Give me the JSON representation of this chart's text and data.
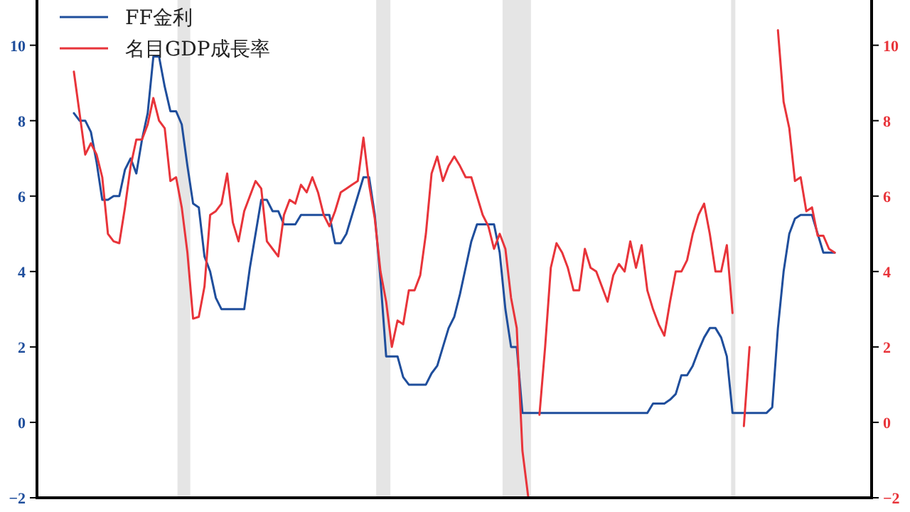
{
  "chart_data": {
    "type": "line",
    "categories": [
      null,
      null,
      null,
      null,
      null,
      null,
      null,
      null,
      null,
      null,
      null,
      null,
      null,
      null,
      null,
      null,
      null,
      null,
      null,
      null,
      null,
      null,
      null,
      null,
      null,
      null,
      null,
      null,
      null,
      null,
      null,
      null,
      null,
      null,
      null,
      null,
      null,
      null,
      null,
      null,
      null,
      null,
      null,
      null,
      null,
      null,
      null,
      null,
      null,
      null,
      null,
      null,
      null,
      null,
      null,
      null,
      null,
      null,
      null,
      null,
      null,
      null,
      null,
      null,
      null,
      null,
      null,
      null,
      null,
      null,
      null,
      null,
      null,
      null,
      null,
      null,
      null,
      null,
      null,
      null,
      null,
      null,
      null,
      null,
      null,
      null,
      null,
      null,
      null,
      null,
      null,
      null,
      null,
      null,
      null,
      null,
      null,
      null,
      null,
      null,
      null,
      null,
      null,
      null,
      null,
      null,
      null,
      null,
      null,
      null,
      null,
      null,
      null,
      null,
      null,
      null,
      null,
      null,
      null,
      null,
      null,
      null,
      null,
      null,
      null,
      null,
      null,
      null,
      null,
      null,
      null,
      null,
      null,
      null,
      null,
      null,
      null,
      null,
      null,
      null,
      null,
      null,
      null,
      null,
      null,
      null,
      null
    ],
    "series": [
      {
        "name": "FF金利",
        "color": "#1f4e9c",
        "values": [
          null,
          null,
          null,
          null,
          null,
          null,
          8.2,
          8.0,
          8.0,
          7.7,
          6.9,
          5.9,
          5.9,
          6.0,
          6.0,
          6.7,
          7.0,
          6.6,
          7.5,
          8.2,
          9.7,
          9.7,
          8.9,
          8.25,
          8.25,
          7.9,
          6.8,
          5.8,
          5.7,
          4.4,
          4.0,
          3.3,
          3.0,
          3.0,
          3.0,
          3.0,
          3.0,
          4.1,
          5.0,
          5.9,
          5.9,
          5.6,
          5.6,
          5.25,
          5.25,
          5.25,
          5.5,
          5.5,
          5.5,
          5.5,
          5.5,
          5.5,
          4.75,
          4.75,
          5.0,
          5.5,
          6.0,
          6.5,
          6.5,
          5.5,
          3.8,
          1.75,
          1.75,
          1.75,
          1.2,
          1.0,
          1.0,
          1.0,
          1.0,
          1.3,
          1.5,
          2.0,
          2.5,
          2.8,
          3.4,
          4.1,
          4.8,
          5.25,
          5.25,
          5.25,
          5.25,
          4.5,
          3.0,
          2.0,
          2.0,
          0.25,
          0.25,
          0.25,
          0.25,
          0.25,
          0.25,
          0.25,
          0.25,
          0.25,
          0.25,
          0.25,
          0.25,
          0.25,
          0.25,
          0.25,
          0.25,
          0.25,
          0.25,
          0.25,
          0.25,
          0.25,
          0.25,
          0.25,
          0.5,
          0.5,
          0.5,
          0.6,
          0.75,
          1.25,
          1.25,
          1.5,
          1.9,
          2.25,
          2.5,
          2.5,
          2.25,
          1.75,
          0.25,
          0.25,
          0.25,
          0.25,
          0.25,
          0.25,
          0.25,
          0.4,
          2.5,
          4.0,
          5.0,
          5.4,
          5.5,
          5.5,
          5.5,
          5.0,
          4.5,
          4.5,
          4.5,
          null,
          null,
          null,
          null,
          null,
          null
        ]
      },
      {
        "name": "名目GDP成長率",
        "color": "#e8343a",
        "axis": "y2",
        "values": [
          null,
          null,
          null,
          null,
          null,
          null,
          9.3,
          8.2,
          7.1,
          7.4,
          7.1,
          6.5,
          5.0,
          4.8,
          4.75,
          5.7,
          6.8,
          7.5,
          7.5,
          7.9,
          8.6,
          8.0,
          7.8,
          6.4,
          6.5,
          5.7,
          4.5,
          2.75,
          2.8,
          3.6,
          5.5,
          5.6,
          5.8,
          6.6,
          5.3,
          4.8,
          5.6,
          6.0,
          6.4,
          6.2,
          4.8,
          4.6,
          4.4,
          5.5,
          5.9,
          5.8,
          6.3,
          6.1,
          6.5,
          6.1,
          5.5,
          5.2,
          5.6,
          6.1,
          6.2,
          6.3,
          6.4,
          7.55,
          6.3,
          5.4,
          4.0,
          3.2,
          2.0,
          2.7,
          2.6,
          3.5,
          3.5,
          3.9,
          5.0,
          6.6,
          7.05,
          6.4,
          6.8,
          7.05,
          6.8,
          6.5,
          6.5,
          6.0,
          5.5,
          5.2,
          4.6,
          5.0,
          4.6,
          3.3,
          2.5,
          -0.75,
          -1.95,
          null,
          0.2,
          2.0,
          4.1,
          4.75,
          4.5,
          4.1,
          3.5,
          3.5,
          4.6,
          4.1,
          4.0,
          3.6,
          3.2,
          3.9,
          4.2,
          4.0,
          4.8,
          4.1,
          4.7,
          3.5,
          3.0,
          2.6,
          2.3,
          3.2,
          4.0,
          4.0,
          4.3,
          5.0,
          5.5,
          5.8,
          5.0,
          4.0,
          4.0,
          4.7,
          2.9,
          null,
          -0.1,
          2.0,
          null,
          null,
          null,
          null,
          10.4,
          8.5,
          7.8,
          6.4,
          6.5,
          5.6,
          5.7,
          4.95,
          4.95,
          4.6,
          4.5,
          null,
          null,
          null,
          null,
          null,
          null
        ]
      }
    ],
    "ylim": [
      -2,
      11.2
    ],
    "yticks": [
      -2,
      0,
      2,
      4,
      6,
      8,
      10
    ],
    "y2lim": [
      -2,
      11.2
    ],
    "y2ticks": [
      -2,
      0,
      2,
      4,
      6,
      8,
      10
    ],
    "legend": "top left"
  }
}
